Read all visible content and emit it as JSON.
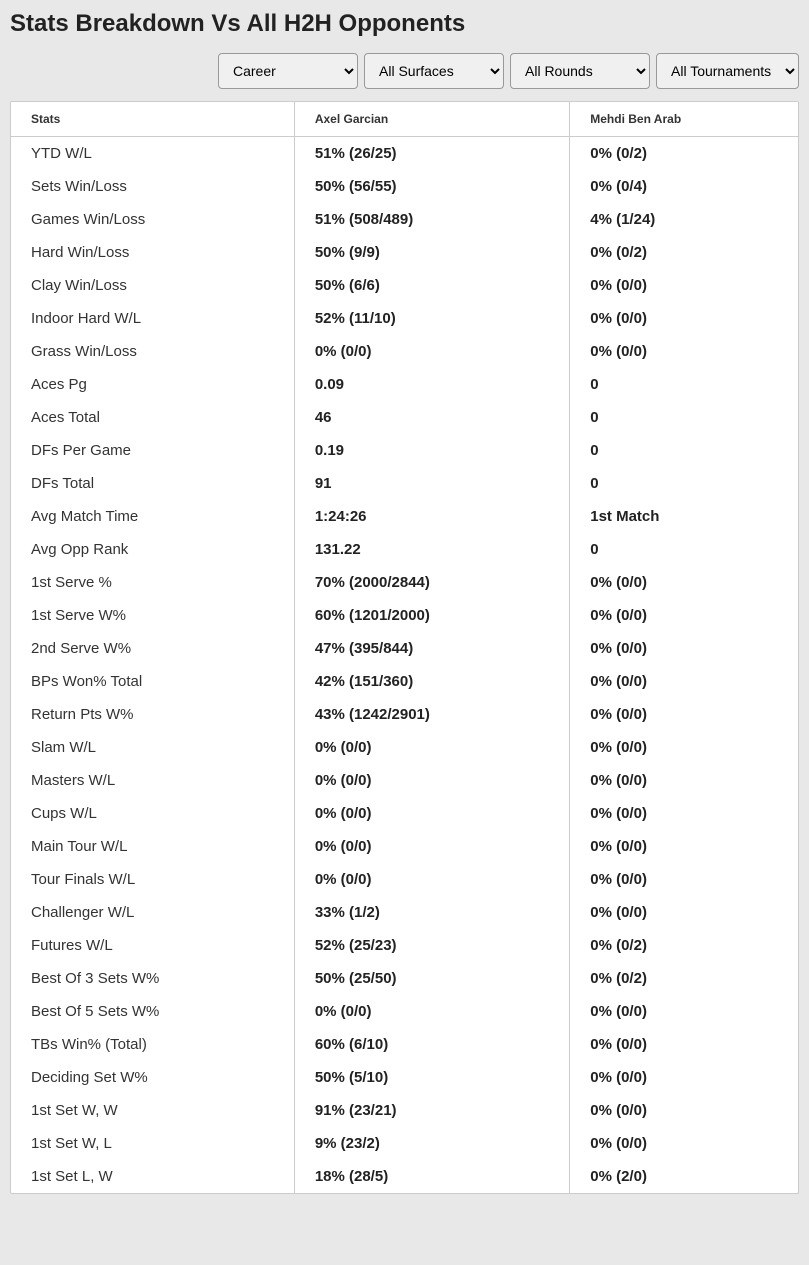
{
  "title": "Stats Breakdown Vs All H2H Opponents",
  "filters": {
    "period": {
      "selected": "Career",
      "options": [
        "Career"
      ]
    },
    "surface": {
      "selected": "All Surfaces",
      "options": [
        "All Surfaces"
      ]
    },
    "round": {
      "selected": "All Rounds",
      "options": [
        "All Rounds"
      ]
    },
    "tournament": {
      "selected": "All Tournaments",
      "options": [
        "All Tournaments"
      ]
    }
  },
  "columns": {
    "stats": "Stats",
    "player1": "Axel Garcian",
    "player2": "Mehdi Ben Arab"
  },
  "rows": [
    {
      "stat": "YTD W/L",
      "p1": "51% (26/25)",
      "p2": "0% (0/2)"
    },
    {
      "stat": "Sets Win/Loss",
      "p1": "50% (56/55)",
      "p2": "0% (0/4)"
    },
    {
      "stat": "Games Win/Loss",
      "p1": "51% (508/489)",
      "p2": "4% (1/24)"
    },
    {
      "stat": "Hard Win/Loss",
      "p1": "50% (9/9)",
      "p2": "0% (0/2)"
    },
    {
      "stat": "Clay Win/Loss",
      "p1": "50% (6/6)",
      "p2": "0% (0/0)"
    },
    {
      "stat": "Indoor Hard W/L",
      "p1": "52% (11/10)",
      "p2": "0% (0/0)"
    },
    {
      "stat": "Grass Win/Loss",
      "p1": "0% (0/0)",
      "p2": "0% (0/0)"
    },
    {
      "stat": "Aces Pg",
      "p1": "0.09",
      "p2": "0"
    },
    {
      "stat": "Aces Total",
      "p1": "46",
      "p2": "0"
    },
    {
      "stat": "DFs Per Game",
      "p1": "0.19",
      "p2": "0"
    },
    {
      "stat": "DFs Total",
      "p1": "91",
      "p2": "0"
    },
    {
      "stat": "Avg Match Time",
      "p1": "1:24:26",
      "p2": "1st Match"
    },
    {
      "stat": "Avg Opp Rank",
      "p1": "131.22",
      "p2": "0"
    },
    {
      "stat": "1st Serve %",
      "p1": "70% (2000/2844)",
      "p2": "0% (0/0)"
    },
    {
      "stat": "1st Serve W%",
      "p1": "60% (1201/2000)",
      "p2": "0% (0/0)"
    },
    {
      "stat": "2nd Serve W%",
      "p1": "47% (395/844)",
      "p2": "0% (0/0)"
    },
    {
      "stat": "BPs Won% Total",
      "p1": "42% (151/360)",
      "p2": "0% (0/0)"
    },
    {
      "stat": "Return Pts W%",
      "p1": "43% (1242/2901)",
      "p2": "0% (0/0)"
    },
    {
      "stat": "Slam W/L",
      "p1": "0% (0/0)",
      "p2": "0% (0/0)"
    },
    {
      "stat": "Masters W/L",
      "p1": "0% (0/0)",
      "p2": "0% (0/0)"
    },
    {
      "stat": "Cups W/L",
      "p1": "0% (0/0)",
      "p2": "0% (0/0)"
    },
    {
      "stat": "Main Tour W/L",
      "p1": "0% (0/0)",
      "p2": "0% (0/0)"
    },
    {
      "stat": "Tour Finals W/L",
      "p1": "0% (0/0)",
      "p2": "0% (0/0)"
    },
    {
      "stat": "Challenger W/L",
      "p1": "33% (1/2)",
      "p2": "0% (0/0)"
    },
    {
      "stat": "Futures W/L",
      "p1": "52% (25/23)",
      "p2": "0% (0/2)"
    },
    {
      "stat": "Best Of 3 Sets W%",
      "p1": "50% (25/50)",
      "p2": "0% (0/2)"
    },
    {
      "stat": "Best Of 5 Sets W%",
      "p1": "0% (0/0)",
      "p2": "0% (0/0)"
    },
    {
      "stat": "TBs Win% (Total)",
      "p1": "60% (6/10)",
      "p2": "0% (0/0)"
    },
    {
      "stat": "Deciding Set W%",
      "p1": "50% (5/10)",
      "p2": "0% (0/0)"
    },
    {
      "stat": "1st Set W, W",
      "p1": "91% (23/21)",
      "p2": "0% (0/0)"
    },
    {
      "stat": "1st Set W, L",
      "p1": "9% (23/2)",
      "p2": "0% (0/0)"
    },
    {
      "stat": "1st Set L, W",
      "p1": "18% (28/5)",
      "p2": "0% (2/0)"
    }
  ],
  "styling": {
    "background_color": "#e8e8e8",
    "table_background": "#ffffff",
    "border_color": "#cccccc",
    "header_font_size": 12,
    "cell_font_size": 15,
    "title_font_size": 24,
    "text_color": "#222222"
  }
}
